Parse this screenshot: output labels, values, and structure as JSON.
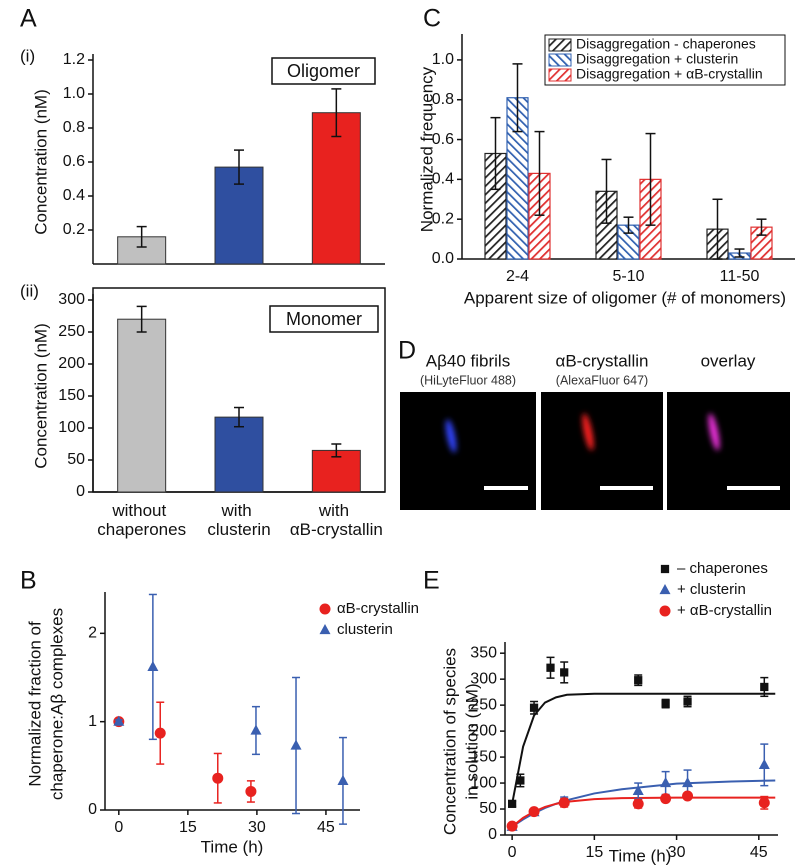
{
  "chart_data": [
    {
      "type": "bar",
      "panel_label": "A",
      "subplot_label": "(i)",
      "annotation": "Oligomer",
      "ylabel": "Concentration (nM)",
      "values": [
        0.16,
        0.57,
        0.89
      ],
      "errors": [
        0.06,
        0.1,
        0.14
      ],
      "colors": [
        "#c0c0c0",
        "#2f4fa0",
        "#e8221f"
      ],
      "ylim": [
        0,
        1.2
      ],
      "yticks": [
        0.2,
        0.4,
        0.6,
        0.8,
        {
          "value": 1,
          "label": "1.0"
        },
        1.2
      ]
    },
    {
      "type": "bar",
      "subplot_label": "(ii)",
      "annotation": "Monomer",
      "ylabel": "Concentration (nM)",
      "categories": [
        "without chaperones",
        "with clusterin",
        "with αB-crystallin"
      ],
      "values": [
        270,
        117,
        65
      ],
      "errors": [
        20,
        15,
        10
      ],
      "colors": [
        "#c0c0c0",
        "#2f4fa0",
        "#e8221f"
      ],
      "ylim": [
        0,
        300
      ],
      "yticks": [
        0,
        50,
        100,
        150,
        200,
        250,
        300
      ]
    },
    {
      "type": "scatter",
      "panel_label": "B",
      "ylabel": [
        "Normalized fraction of",
        "chaperone:Aβ complexes"
      ],
      "xlabel": "Time (h)",
      "xlim": [
        -3,
        52.4
      ],
      "xticks": [
        0,
        15,
        30,
        45
      ],
      "ylim": [
        0,
        2.4
      ],
      "yticks": [
        0,
        1,
        2
      ],
      "legend": "upper right",
      "series": [
        {
          "name": "αB-crystallin",
          "color": "#e8221f",
          "marker": "circle",
          "x": [
            0,
            9,
            21.5,
            28.7
          ],
          "values": [
            1.0,
            0.87,
            0.36,
            0.21
          ],
          "errors": [
            0.02,
            0.35,
            0.28,
            0.12
          ]
        },
        {
          "name": "clusterin",
          "color": "#3a5fb0",
          "marker": "triangle",
          "x": [
            0,
            7.4,
            29.8,
            38.5,
            48.7
          ],
          "values": [
            1.0,
            1.62,
            0.9,
            0.73,
            0.33
          ],
          "errors": [
            0.02,
            0.82,
            0.27,
            0.77,
            0.49
          ]
        }
      ]
    },
    {
      "type": "grouped_bar",
      "panel_label": "C",
      "ylabel": "Normalized frequency",
      "xlabel": "Apparent size of oligomer (# of monomers)",
      "categories": [
        "2-4",
        "5-10",
        "11-50"
      ],
      "ylim": [
        0,
        1.1
      ],
      "yticks": [
        {
          "value": 0,
          "label": "0.0"
        },
        0.2,
        0.4,
        0.6,
        0.8,
        {
          "value": 1,
          "label": "1.0"
        }
      ],
      "hatch": true,
      "legend": "upper left",
      "series": [
        {
          "name": "Disaggregation - chaperones",
          "color": "#222222",
          "values": [
            0.53,
            0.34,
            0.15
          ],
          "errors": [
            0.18,
            0.16,
            0.15
          ]
        },
        {
          "name": "Disaggregation + clusterin",
          "color": "#3060b0",
          "values": [
            0.81,
            0.17,
            0.03
          ],
          "errors": [
            0.17,
            0.04,
            0.02
          ]
        },
        {
          "name": "Disaggregation + αB-crystallin",
          "color": "#e03030",
          "values": [
            0.43,
            0.4,
            0.16
          ],
          "errors": [
            0.21,
            0.23,
            0.04
          ]
        }
      ]
    },
    {
      "type": "scatter",
      "panel_label": "E",
      "ylabel": [
        "Concentration of species",
        "in solution (nM)"
      ],
      "xlabel": "Time (h)",
      "xlim": [
        -1.3,
        48.5
      ],
      "xticks": [
        0,
        15,
        30,
        45
      ],
      "ylim": [
        0,
        360
      ],
      "yticks": [
        0,
        50,
        100,
        150,
        200,
        250,
        300,
        350
      ],
      "legend": "upper right",
      "series": [
        {
          "name": "– chaperones",
          "color": "#111111",
          "marker": "square",
          "x": [
            0,
            1.5,
            4,
            7,
            9.5,
            23,
            28,
            32,
            46
          ],
          "values": [
            60,
            105,
            245,
            322,
            313,
            298,
            253,
            257,
            285
          ],
          "errors": [
            5,
            12,
            12,
            20,
            20,
            10,
            8,
            10,
            18
          ],
          "fit_x": [
            0,
            2,
            4,
            6,
            8,
            10,
            15,
            20,
            30,
            40,
            48
          ],
          "fit_values": [
            60,
            170,
            230,
            255,
            265,
            270,
            272,
            272,
            272,
            272,
            272
          ]
        },
        {
          "name": "+ clusterin",
          "color": "#3a5fb0",
          "marker": "triangle",
          "x": [
            0,
            4,
            9.5,
            23,
            28,
            32,
            46
          ],
          "values": [
            16,
            44,
            65,
            85,
            100,
            100,
            135
          ],
          "errors": [
            3,
            5,
            8,
            15,
            22,
            25,
            40
          ],
          "fit_x": [
            0,
            2,
            4,
            6,
            8,
            10,
            15,
            20,
            30,
            40,
            48
          ],
          "fit_values": [
            16,
            30,
            42,
            52,
            60,
            67,
            80,
            88,
            99,
            103,
            105
          ]
        },
        {
          "name": "+ αB-crystallin",
          "color": "#e8221f",
          "marker": "circle",
          "x": [
            0,
            4,
            9.5,
            23,
            28,
            32,
            46
          ],
          "values": [
            17,
            45,
            62,
            60,
            70,
            75,
            62
          ],
          "errors": [
            3,
            5,
            8,
            8,
            6,
            5,
            12
          ],
          "fit_x": [
            0,
            2,
            4,
            6,
            8,
            10,
            15,
            20,
            30,
            40,
            48
          ],
          "fit_values": [
            16,
            33,
            45,
            54,
            60,
            64,
            69,
            71,
            72,
            72,
            72
          ]
        }
      ]
    }
  ],
  "panel_d": {
    "panel_label": "D",
    "images": [
      {
        "title": "Aβ40 fibrils",
        "subtitle": "(HiLyteFluor 488)"
      },
      {
        "title": "αB-crystallin",
        "subtitle": "(AlexaFluor 647)"
      },
      {
        "title": "overlay"
      }
    ]
  }
}
